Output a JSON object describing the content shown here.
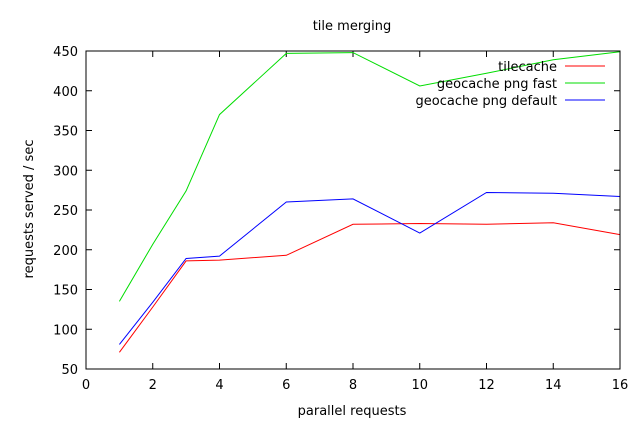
{
  "chart_data": {
    "type": "line",
    "title": "tile merging",
    "xlabel": "parallel requests",
    "ylabel": "requests served / sec",
    "xlim": [
      0,
      16
    ],
    "ylim": [
      50,
      450
    ],
    "xticks": [
      0,
      2,
      4,
      6,
      8,
      10,
      12,
      14,
      16
    ],
    "yticks": [
      50,
      100,
      150,
      200,
      250,
      300,
      350,
      400,
      450
    ],
    "grid": false,
    "legend_position": "top-right",
    "series": [
      {
        "name": "tilecache",
        "color": "#ff0000",
        "x": [
          1,
          2,
          3,
          4,
          6,
          8,
          10,
          12,
          14,
          16
        ],
        "y": [
          71,
          128,
          186,
          187,
          193,
          232,
          233,
          232,
          234,
          219
        ]
      },
      {
        "name": "geocache png fast",
        "color": "#00dd00",
        "x": [
          1,
          2,
          3,
          4,
          6,
          8,
          10,
          12,
          14,
          16
        ],
        "y": [
          135,
          207,
          274,
          370,
          447,
          448,
          406,
          422,
          439,
          449
        ]
      },
      {
        "name": "geocache png default",
        "color": "#0000ff",
        "x": [
          1,
          2,
          3,
          4,
          6,
          8,
          10,
          12,
          14,
          16
        ],
        "y": [
          81,
          134,
          189,
          192,
          260,
          264,
          221,
          272,
          271,
          267
        ]
      }
    ]
  }
}
